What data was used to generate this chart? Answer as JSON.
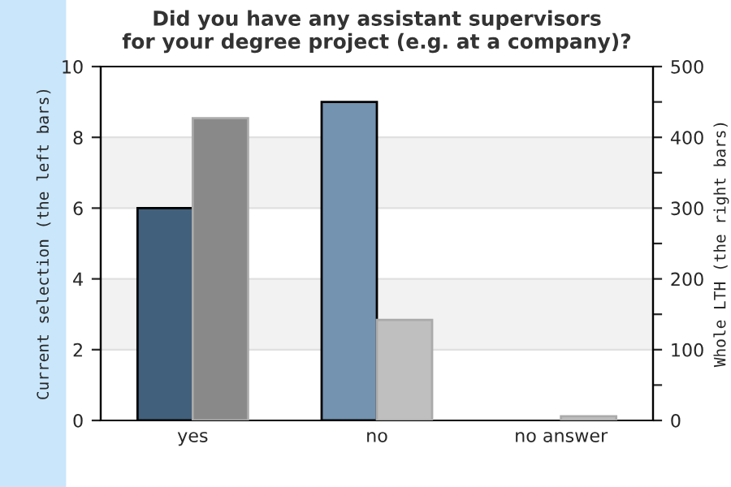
{
  "chart_data": {
    "type": "bar",
    "title": "Did you have any assistant supervisors\nfor your degree project (e.g. at a company)?",
    "ylabel": "Current selection (the left bars)",
    "y2label": "Whole LTH (the right bars)",
    "categories": [
      "yes",
      "no",
      "no answer"
    ],
    "series": [
      {
        "colors": [
          "#41607c",
          "#7393b0",
          "#7393b0"
        ],
        "values": [
          6,
          9,
          null
        ]
      },
      {
        "colors": [
          "#898989",
          "#bfbfbf",
          "#bfbfbf"
        ],
        "values": [
          427,
          142,
          6
        ],
        "axis": "y2"
      }
    ],
    "ylim": [
      0,
      10
    ],
    "yticks": [
      0,
      2,
      4,
      6,
      8,
      10
    ],
    "y2lim": [
      0,
      500
    ],
    "y2ticks": [
      0,
      {
        "value": 50,
        "label": null
      },
      100,
      {
        "value": 150,
        "label": null
      },
      200,
      {
        "value": 250,
        "label": null
      },
      300,
      {
        "value": 350,
        "label": null
      },
      400,
      {
        "value": 450,
        "label": null
      },
      500
    ],
    "grid": "y",
    "legend": false
  }
}
